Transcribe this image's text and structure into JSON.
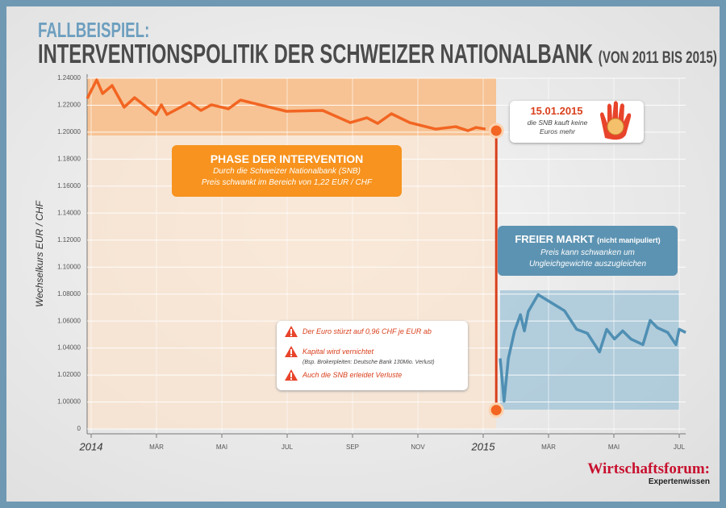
{
  "header": {
    "kicker": "FALLBEISPIEL:",
    "title": "INTERVENTIONSPOLITIK DER SCHWEIZER NATIONALBANK",
    "title_note": "(VON 2011 BIS 2015)"
  },
  "chart_data": {
    "type": "line",
    "y_label": "Wechselkurs EUR / CHF",
    "xlim": [
      -0.12,
      18.3
    ],
    "xticks": [
      {
        "value": 0,
        "label": "2014"
      },
      {
        "value": 2,
        "label": "MÄR"
      },
      {
        "value": 4,
        "label": "MAI"
      },
      {
        "value": 6,
        "label": "JUL"
      },
      {
        "value": 8,
        "label": "SEP"
      },
      {
        "value": 10,
        "label": "NOV"
      },
      {
        "value": 12,
        "label": "2015"
      },
      {
        "value": 14,
        "label": "MÄR"
      },
      {
        "value": 16,
        "label": "MAI"
      },
      {
        "value": 18,
        "label": "JUL"
      }
    ],
    "ylim": [
      0.98,
      1.24
    ],
    "yticks": [
      {
        "value": 1.24,
        "label": "1.24000"
      },
      {
        "value": 1.22,
        "label": "1.22000"
      },
      {
        "value": 1.2,
        "label": "1.20000"
      },
      {
        "value": 1.18,
        "label": "1.18000"
      },
      {
        "value": 1.16,
        "label": "1.16000"
      },
      {
        "value": 1.14,
        "label": "1.14000"
      },
      {
        "value": 1.12,
        "label": "1.12000"
      },
      {
        "value": 1.1,
        "label": "1.10000"
      },
      {
        "value": 1.08,
        "label": "1.08000"
      },
      {
        "value": 1.06,
        "label": "1.06000"
      },
      {
        "value": 1.04,
        "label": "1.04000"
      },
      {
        "value": 1.02,
        "label": "1.02000"
      },
      {
        "value": 1.0,
        "label": "1.00000"
      },
      {
        "value": 0.98,
        "label": "0"
      }
    ],
    "grid": true,
    "series": [
      {
        "color": "#f26522",
        "x": [
          -0.12,
          0.17,
          0.35,
          0.64,
          1.01,
          1.33,
          1.98,
          2.15,
          2.32,
          3.01,
          3.36,
          3.68,
          4.2,
          4.57,
          5.36,
          5.98,
          7.09,
          7.93,
          8.44,
          8.77,
          9.19,
          9.75,
          10.54,
          11.16,
          11.53,
          11.78,
          12.07
        ],
        "values": [
          1.225,
          1.2388,
          1.2286,
          1.2346,
          1.2185,
          1.2256,
          1.2131,
          1.2203,
          1.2131,
          1.222,
          1.2161,
          1.2203,
          1.2173,
          1.2238,
          1.2191,
          1.2155,
          1.2161,
          1.2071,
          1.2107,
          1.2065,
          1.2137,
          1.2071,
          1.2023,
          1.2041,
          1.2011,
          1.2035,
          1.2023
        ]
      },
      {
        "color": "#d9401c",
        "x": [
          12.4,
          12.4
        ],
        "values": [
          1.2011,
          0.994
        ]
      },
      {
        "color": "#4f8fb3",
        "x": [
          12.52,
          12.64,
          12.77,
          12.96,
          13.14,
          13.26,
          13.38,
          13.68,
          14.49,
          14.86,
          15.19,
          15.56,
          15.78,
          16.02,
          16.27,
          16.52,
          16.89,
          17.11,
          17.33,
          17.65,
          17.9,
          18.0,
          18.2
        ],
        "values": [
          1.0323,
          1.0006,
          1.0323,
          1.0527,
          1.0647,
          1.0527,
          1.0671,
          1.0796,
          1.0676,
          1.0539,
          1.0509,
          1.0371,
          1.0539,
          1.0467,
          1.0527,
          1.0467,
          1.0425,
          1.0605,
          1.0551,
          1.0515,
          1.0425,
          1.0539,
          1.0515
        ]
      }
    ]
  },
  "callout_date": {
    "date": "15.01.2015",
    "text": "die SNB kauft keine Euros mehr"
  },
  "phase_intervention": {
    "title": "PHASE DER INTERVENTION",
    "line1": "Durch die Schweizer Nationalbank (SNB)",
    "line2": "Preis schwankt im Bereich von 1,22 EUR / CHF"
  },
  "phase_free": {
    "title": "FREIER MARKT",
    "note": "(nicht manipuliert)",
    "line1": "Preis kann schwanken um",
    "line2": "Ungleichgewichte auszugleichen"
  },
  "warnings": [
    "Der Euro stürzt auf 0,96 CHF je EUR ab",
    "Kapital wird vernichtet",
    "(Bsp. Brokerpleiten: Deutsche Bank 130Mio. Verlust)",
    "Auch die SNB erleidet Verluste"
  ],
  "logo": {
    "name": "Wirtschaftsforum:",
    "tagline": "Expertenwissen"
  }
}
